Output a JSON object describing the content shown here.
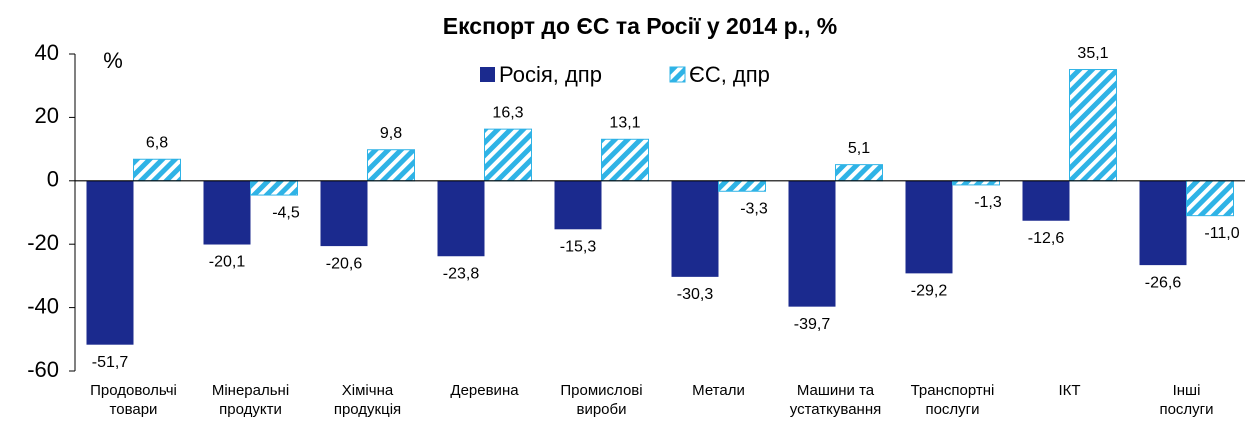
{
  "chart_data": {
    "type": "bar",
    "title": "Експорт до ЄС та Росії у 2014 р., %",
    "y_label": "%",
    "categories": [
      "Продовольчі\nтовари",
      "Мінеральні\nпродукти",
      "Хімічна\nпродукція",
      "Деревина",
      "Промислові\nвироби",
      "Метали",
      "Машини та\nустаткування",
      "Транспортні\nпослуги",
      "ІКТ",
      "Інші\nпослуги"
    ],
    "series": [
      {
        "name": "Росія, дпр",
        "color": "#1b2a8e",
        "pattern": "solid",
        "values": [
          -51.7,
          -20.1,
          -20.6,
          -23.8,
          -15.3,
          -30.3,
          -39.7,
          -29.2,
          -12.6,
          -26.6
        ],
        "value_labels": [
          "-51,7",
          "-20,1",
          "-20,6",
          "-23,8",
          "-15,3",
          "-30,3",
          "-39,7",
          "-29,2",
          "-12,6",
          "-26,6"
        ]
      },
      {
        "name": "ЄС, дпр",
        "color": "#2fb3e6",
        "pattern": "hatch",
        "values": [
          6.8,
          -4.5,
          9.8,
          16.3,
          13.1,
          -3.3,
          5.1,
          -1.3,
          35.1,
          -11.0
        ],
        "value_labels": [
          "6,8",
          "-4,5",
          "9,8",
          "16,3",
          "13,1",
          "-3,3",
          "5,1",
          "-1,3",
          "35,1",
          "-11,0"
        ]
      }
    ],
    "ylim": [
      -60,
      40
    ],
    "yticks": [
      -60,
      -40,
      -20,
      0,
      20,
      40
    ],
    "grid": false,
    "legend": "top"
  }
}
